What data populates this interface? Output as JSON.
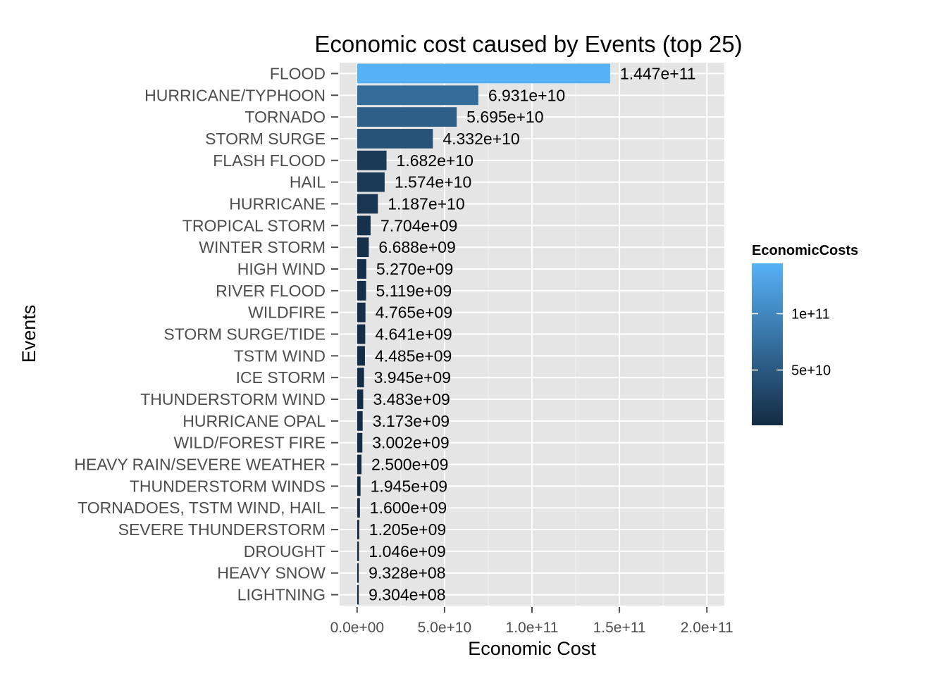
{
  "chart_data": {
    "type": "bar",
    "orientation": "horizontal",
    "title": "Economic cost caused by Events (top 25)",
    "xlabel": "Economic Cost",
    "ylabel": "Events",
    "xlim": [
      0,
      200000000000
    ],
    "x_ticks": [
      0,
      50000000000,
      100000000000,
      150000000000,
      200000000000
    ],
    "x_tick_labels": [
      "0.0e+00",
      "5.0e+10",
      "1.0e+11",
      "1.5e+11",
      "2.0e+11"
    ],
    "grid": true,
    "categories": [
      "FLOOD",
      "HURRICANE/TYPHOON",
      "TORNADO",
      "STORM SURGE",
      "FLASH FLOOD",
      "HAIL",
      "HURRICANE",
      "TROPICAL STORM",
      "WINTER STORM",
      "HIGH WIND",
      "RIVER FLOOD",
      "WILDFIRE",
      "STORM SURGE/TIDE",
      "TSTM WIND",
      "ICE STORM",
      "THUNDERSTORM WIND",
      "HURRICANE OPAL",
      "WILD/FOREST FIRE",
      "HEAVY RAIN/SEVERE WEATHER",
      "THUNDERSTORM WINDS",
      "TORNADOES, TSTM WIND, HAIL",
      "SEVERE THUNDERSTORM",
      "DROUGHT",
      "HEAVY SNOW",
      "LIGHTNING"
    ],
    "values": [
      144700000000,
      69310000000,
      56950000000,
      43320000000,
      16820000000,
      15740000000,
      11870000000,
      7704000000,
      6688000000,
      5270000000,
      5119000000,
      4765000000,
      4641000000,
      4485000000,
      3945000000,
      3483000000,
      3173000000,
      3002000000,
      2500000000,
      1945000000,
      1600000000,
      1205000000,
      1046000000,
      932800000,
      930400000
    ],
    "value_labels": [
      "1.447e+11",
      "6.931e+10",
      "5.695e+10",
      "4.332e+10",
      "1.682e+10",
      "1.574e+10",
      "1.187e+10",
      "7.704e+09",
      "6.688e+09",
      "5.270e+09",
      "5.119e+09",
      "4.765e+09",
      "4.641e+09",
      "4.485e+09",
      "3.945e+09",
      "3.483e+09",
      "3.173e+09",
      "3.002e+09",
      "2.500e+09",
      "1.945e+09",
      "1.600e+09",
      "1.205e+09",
      "1.046e+09",
      "9.328e+08",
      "9.304e+08"
    ],
    "legend": {
      "title": "EconomicCosts",
      "placement": "right",
      "type": "colorbar",
      "low_color": "#132B43",
      "high_color": "#56B1F7",
      "ticks": [
        50000000000,
        100000000000
      ],
      "tick_labels": [
        "5e+10",
        "1e+11"
      ]
    },
    "panel_background": "#e5e5e5",
    "grid_color": "#ffffff"
  }
}
